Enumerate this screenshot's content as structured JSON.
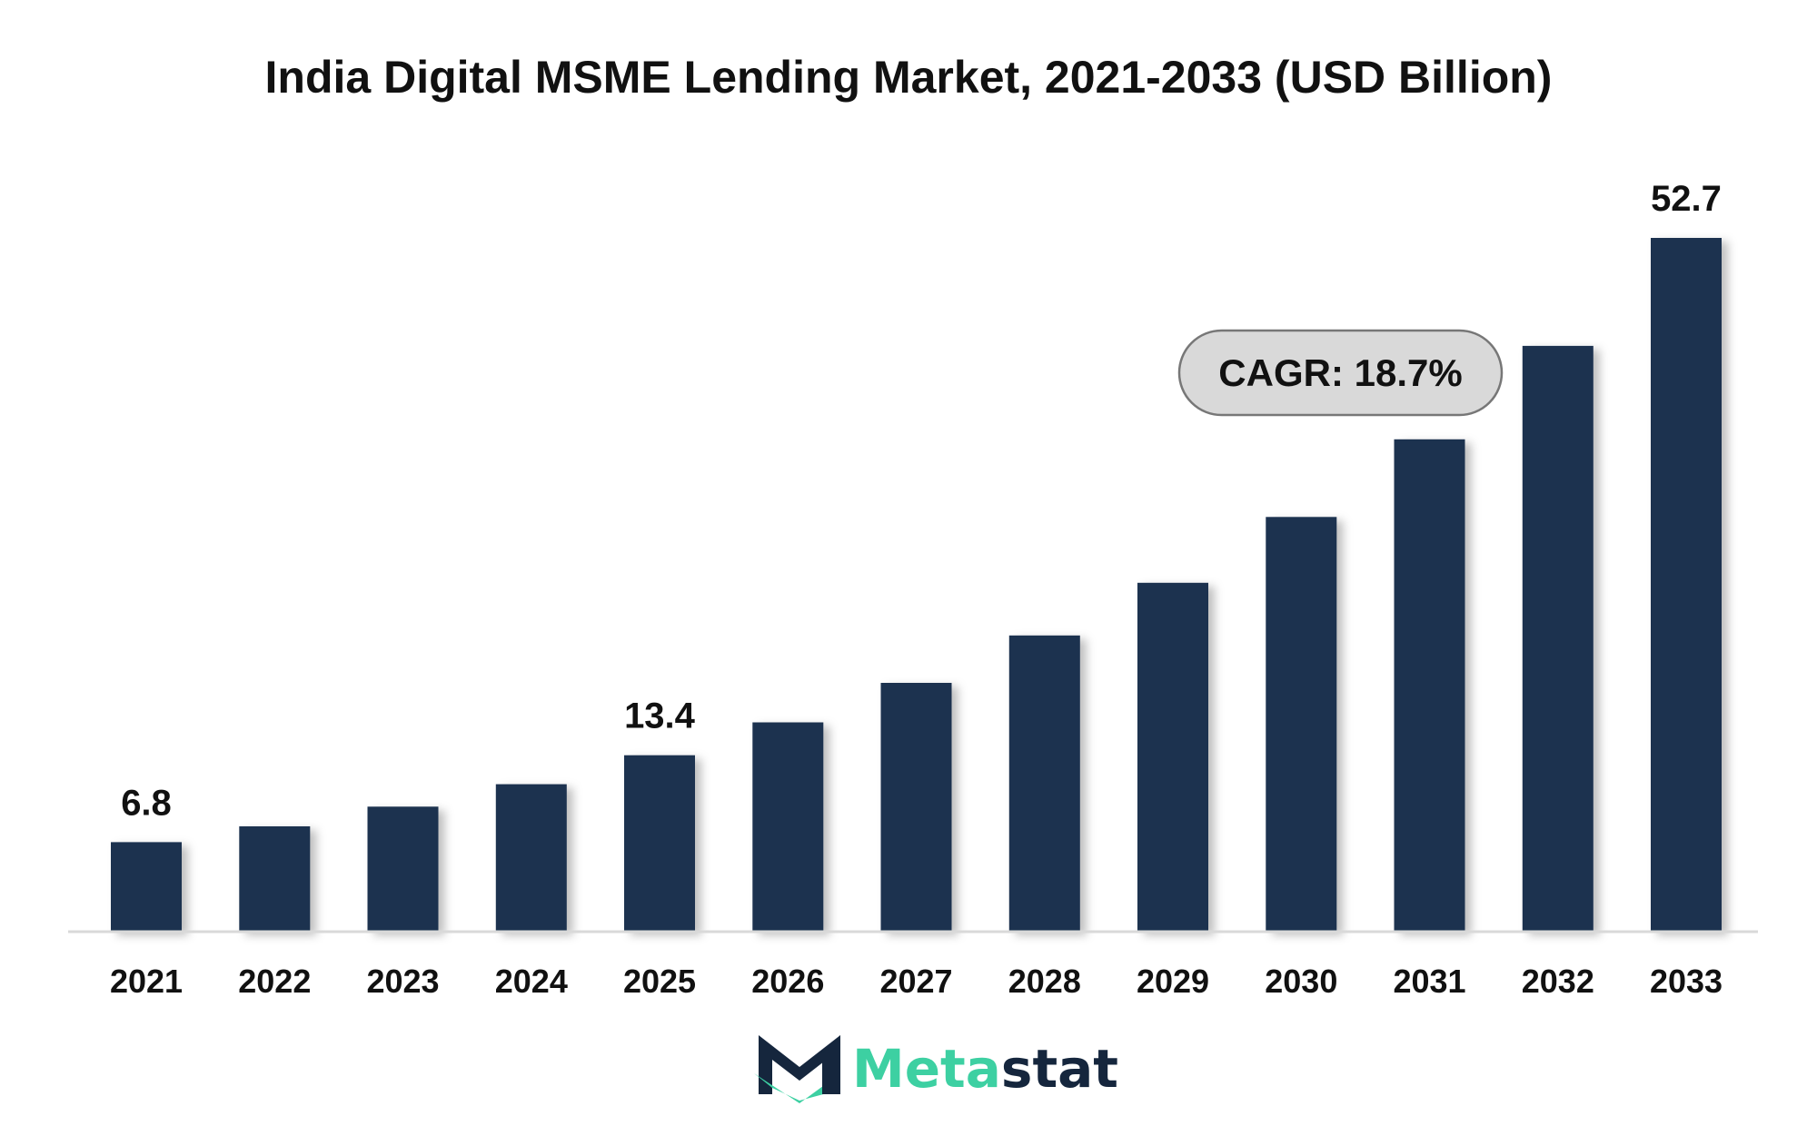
{
  "chart_data": {
    "type": "bar",
    "title": "India Digital MSME Lending Market, 2021-2033 (USD Billion)",
    "xlabel": "",
    "ylabel": "",
    "categories": [
      "2021",
      "2022",
      "2023",
      "2024",
      "2025",
      "2026",
      "2027",
      "2028",
      "2029",
      "2030",
      "2031",
      "2032",
      "2033"
    ],
    "values": [
      6.8,
      8.0,
      9.5,
      11.2,
      13.4,
      15.9,
      18.9,
      22.5,
      26.5,
      31.5,
      37.4,
      44.5,
      52.7
    ],
    "value_labels": [
      "6.8",
      "",
      "",
      "",
      "13.4",
      "",
      "",
      "",
      "",
      "",
      "",
      "",
      "52.7"
    ],
    "ylim": [
      0,
      54
    ],
    "grid": false,
    "legend": "none",
    "annotation": "CAGR: 18.7%",
    "bar_color": "#1b3150",
    "axis_color": "#d9d9d9"
  },
  "brand": {
    "part1": "Meta",
    "part2": "stat",
    "color_dark": "#15263d",
    "color_accent": "#3dd0a2"
  }
}
